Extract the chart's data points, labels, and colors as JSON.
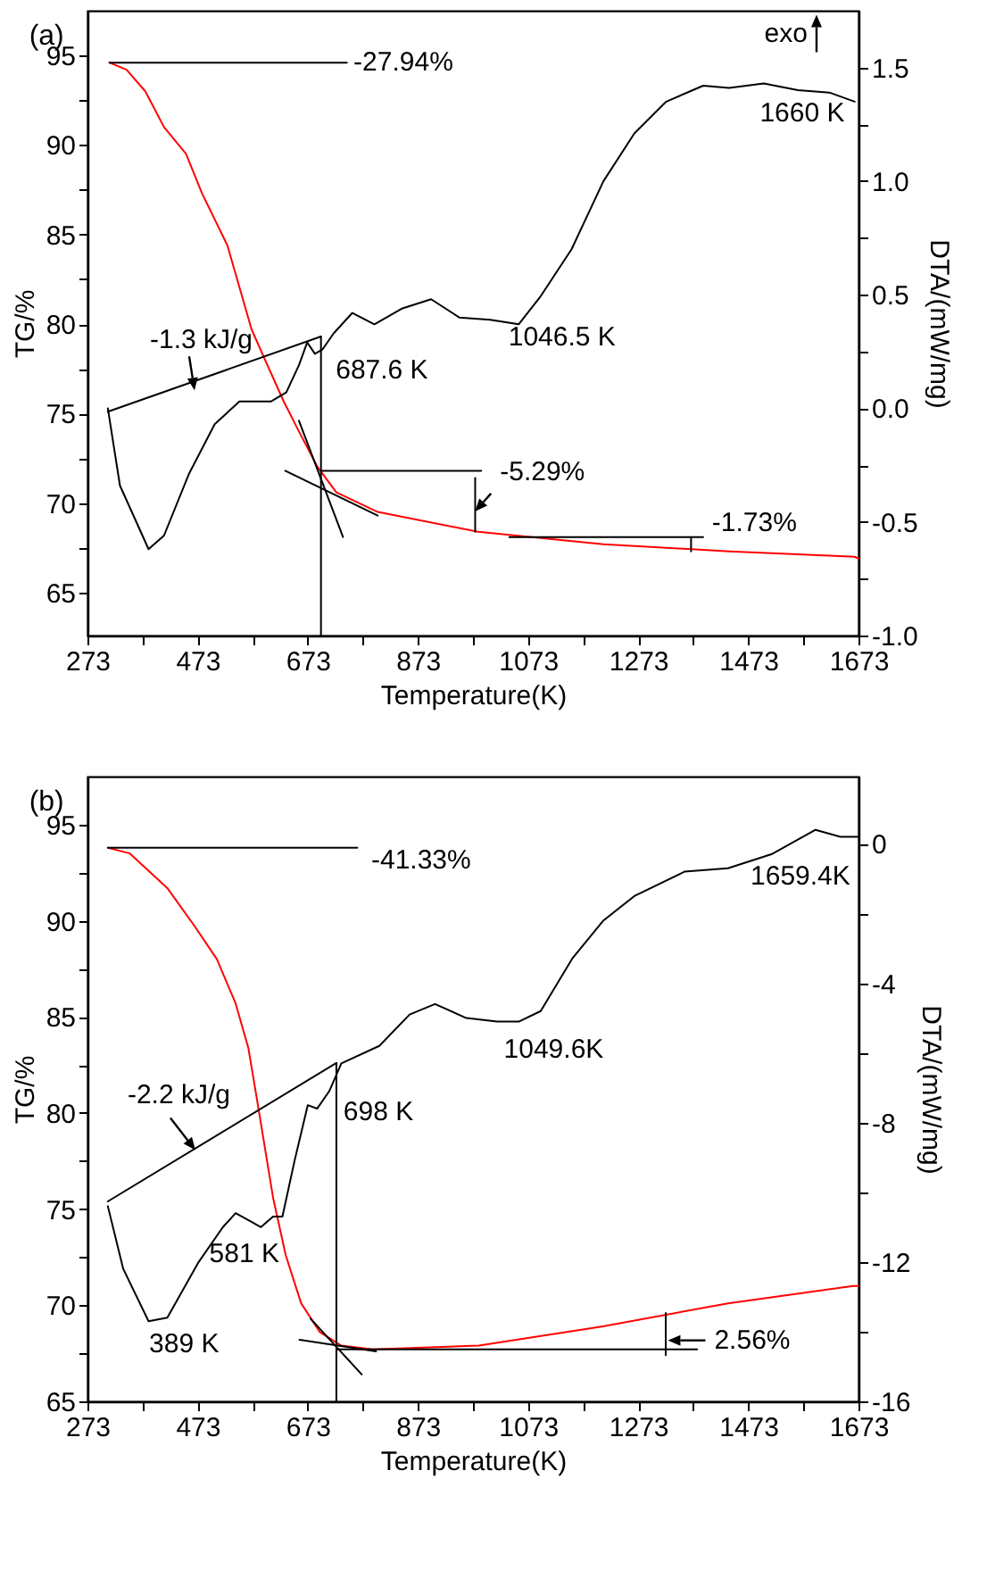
{
  "chart_data": [
    {
      "type": "line",
      "title": "(a)",
      "xlabel": "Temperature(K)",
      "ylabel": "TG/%",
      "y2label": "DTA/(mW/mg)",
      "xlim": [
        273,
        1673
      ],
      "xticks": [
        273,
        {
          "value": 373,
          "label": null
        },
        473,
        {
          "value": 573,
          "label": null
        },
        673,
        {
          "value": 773,
          "label": null
        },
        873,
        {
          "value": 973,
          "label": null
        },
        1073,
        {
          "value": 1173,
          "label": null
        },
        1273,
        {
          "value": 1373,
          "label": null
        },
        1473,
        {
          "value": 1573,
          "label": null
        },
        1673
      ],
      "ylim": [
        62.6,
        97.5
      ],
      "yticks": [
        65,
        {
          "value": 67.5,
          "label": null
        },
        70,
        {
          "value": 72.5,
          "label": null
        },
        75,
        {
          "value": 77.5,
          "label": null
        },
        80,
        {
          "value": 82.5,
          "label": null
        },
        85,
        {
          "value": 87.5,
          "label": null
        },
        90,
        {
          "value": 92.5,
          "label": null
        },
        95
      ],
      "y2lim": [
        -1.0,
        1.75
      ],
      "y2ticks": [
        {
          "value": -1,
          "label": "-1.0"
        },
        {
          "value": -0.75,
          "label": null
        },
        -0.5,
        {
          "value": -0.25,
          "label": null
        },
        {
          "value": 0,
          "label": "0.0"
        },
        {
          "value": 0.25,
          "label": null
        },
        0.5,
        {
          "value": 0.75,
          "label": null
        },
        {
          "value": 1,
          "label": "1.0"
        },
        {
          "value": 1.25,
          "label": null
        },
        1.5
      ],
      "series": [
        {
          "color": "#ff0000",
          "x": [
            313,
            344,
            378,
            412,
            452,
            481,
            527,
            571,
            594,
            629,
            657,
            691,
            725,
            800,
            982,
            1210,
            1438,
            1666,
            1673
          ],
          "values": [
            94.6,
            94.2,
            93.0,
            91.0,
            89.5,
            87.3,
            84.4,
            79.7,
            78.1,
            75.7,
            74.0,
            72.0,
            70.6,
            69.5,
            68.4,
            67.7,
            67.3,
            67.0,
            66.9
          ]
        },
        {
          "color": "#000000",
          "axis": "y2",
          "x": [
            310,
            332,
            384,
            412,
            457,
            504,
            549,
            606,
            634,
            657,
            672,
            686,
            700,
            720,
            754,
            794,
            845,
            897,
            948,
            1004,
            1056,
            1095,
            1152,
            1210,
            1266,
            1324,
            1391,
            1438,
            1501,
            1563,
            1620,
            1666
          ],
          "values": [
            0.0,
            -0.34,
            -0.62,
            -0.56,
            -0.29,
            -0.07,
            0.03,
            0.03,
            0.07,
            0.19,
            0.29,
            0.24,
            0.26,
            0.33,
            0.42,
            0.37,
            0.44,
            0.48,
            0.4,
            0.39,
            0.37,
            0.49,
            0.7,
            1.0,
            1.21,
            1.35,
            1.42,
            1.41,
            1.43,
            1.4,
            1.39,
            1.35
          ]
        },
        {
          "color": "#000000",
          "x": [
            313,
            744
          ],
          "values": [
            94.6,
            94.6
          ]
        },
        {
          "color": "#000000",
          "x": [
            310,
            697
          ],
          "values": [
            75.1,
            79.3
          ]
        },
        {
          "color": "#000000",
          "x": [
            697,
            697
          ],
          "values": [
            79.3,
            62.6
          ]
        },
        {
          "color": "#000000",
          "x": [
            657,
            737
          ],
          "values": [
            74.6,
            68.1
          ]
        },
        {
          "color": "#000000",
          "x": [
            632,
            800
          ],
          "values": [
            71.8,
            69.3
          ]
        },
        {
          "color": "#000000",
          "x": [
            697,
            988
          ],
          "values": [
            71.8,
            71.8
          ]
        },
        {
          "color": "#000000",
          "x": [
            977,
            977
          ],
          "values": [
            71.4,
            68.4
          ]
        },
        {
          "color": "#000000",
          "x": [
            1039,
            1391
          ],
          "values": [
            68.1,
            68.1
          ]
        },
        {
          "color": "#000000",
          "x": [
            1369,
            1369
          ],
          "values": [
            68.1,
            67.3
          ]
        }
      ],
      "annotations": [
        "exo",
        "-27.94%",
        "1660 K",
        "1046.5 K",
        "687.6 K",
        "-1.3 kJ/g",
        "-5.29%",
        "-1.73%"
      ]
    },
    {
      "type": "line",
      "title": "(b)",
      "xlabel": "Temperature(K)",
      "ylabel": "TG/%",
      "y2label": "DTA/(mW/mg)",
      "xlim": [
        273,
        1673
      ],
      "xticks": [
        273,
        {
          "value": 373,
          "label": null
        },
        473,
        {
          "value": 573,
          "label": null
        },
        673,
        {
          "value": 773,
          "label": null
        },
        873,
        {
          "value": 973,
          "label": null
        },
        1073,
        {
          "value": 1173,
          "label": null
        },
        1273,
        {
          "value": 1373,
          "label": null
        },
        1473,
        {
          "value": 1573,
          "label": null
        },
        1673
      ],
      "ylim": [
        65,
        97.5
      ],
      "yticks": [
        65,
        {
          "value": 67.5,
          "label": null
        },
        70,
        {
          "value": 72.5,
          "label": null
        },
        75,
        {
          "value": 77.5,
          "label": null
        },
        80,
        {
          "value": 82.5,
          "label": null
        },
        85,
        {
          "value": 87.5,
          "label": null
        },
        90,
        {
          "value": 92.5,
          "label": null
        },
        95
      ],
      "y2lim": [
        -16,
        1.93
      ],
      "y2ticks": [
        -16,
        {
          "value": -14,
          "label": null
        },
        -12,
        {
          "value": -10,
          "label": null
        },
        -8,
        {
          "value": -6,
          "label": null
        },
        -4,
        {
          "value": -2,
          "label": null
        },
        0
      ],
      "series": [
        {
          "color": "#ff0000",
          "x": [
            310,
            350,
            418,
            468,
            508,
            542,
            565,
            582,
            610,
            633,
            661,
            695,
            734,
            791,
            984,
            1209,
            1436,
            1663,
            1673
          ],
          "values": [
            93.8,
            93.5,
            91.7,
            89.7,
            88.0,
            85.7,
            83.4,
            80.5,
            75.6,
            72.6,
            70.1,
            68.6,
            67.9,
            67.7,
            67.9,
            68.9,
            70.1,
            71.0,
            71.0
          ]
        },
        {
          "color": "#000000",
          "axis": "y2",
          "x": [
            310,
            338,
            384,
            418,
            475,
            519,
            542,
            565,
            588,
            610,
            627,
            649,
            673,
            690,
            712,
            734,
            803,
            858,
            904,
            961,
            1017,
            1057,
            1096,
            1153,
            1210,
            1266,
            1357,
            1436,
            1515,
            1595,
            1640,
            1673
          ],
          "values": [
            -10.4,
            -12.2,
            -13.7,
            -13.6,
            -12.0,
            -11.0,
            -10.6,
            -10.8,
            -11.0,
            -10.7,
            -10.7,
            -9.1,
            -7.5,
            -7.6,
            -7.1,
            -6.3,
            -5.8,
            -4.9,
            -4.6,
            -5.0,
            -5.1,
            -5.1,
            -4.8,
            -3.3,
            -2.2,
            -1.5,
            -0.8,
            -0.7,
            -0.3,
            0.4,
            0.2,
            0.2
          ]
        },
        {
          "color": "#000000",
          "x": [
            310,
            763
          ],
          "values": [
            93.8,
            93.8
          ]
        },
        {
          "color": "#000000",
          "x": [
            310,
            725
          ],
          "values": [
            75.4,
            82.6
          ]
        },
        {
          "color": "#000000",
          "x": [
            725,
            725
          ],
          "values": [
            82.6,
            65
          ]
        },
        {
          "color": "#000000",
          "x": [
            678,
            771
          ],
          "values": [
            69.3,
            66.4
          ]
        },
        {
          "color": "#000000",
          "x": [
            658,
            797
          ],
          "values": [
            68.2,
            67.6
          ]
        },
        {
          "color": "#000000",
          "x": [
            725,
            1380
          ],
          "values": [
            67.7,
            67.7
          ]
        },
        {
          "color": "#000000",
          "x": [
            1323,
            1323
          ],
          "values": [
            69.6,
            67.4
          ]
        }
      ],
      "annotations": [
        "-41.33%",
        "1659.4K",
        "1049.6K",
        "-2.2 kJ/g",
        "698 K",
        "581 K",
        "389 K",
        "2.56%"
      ]
    }
  ]
}
